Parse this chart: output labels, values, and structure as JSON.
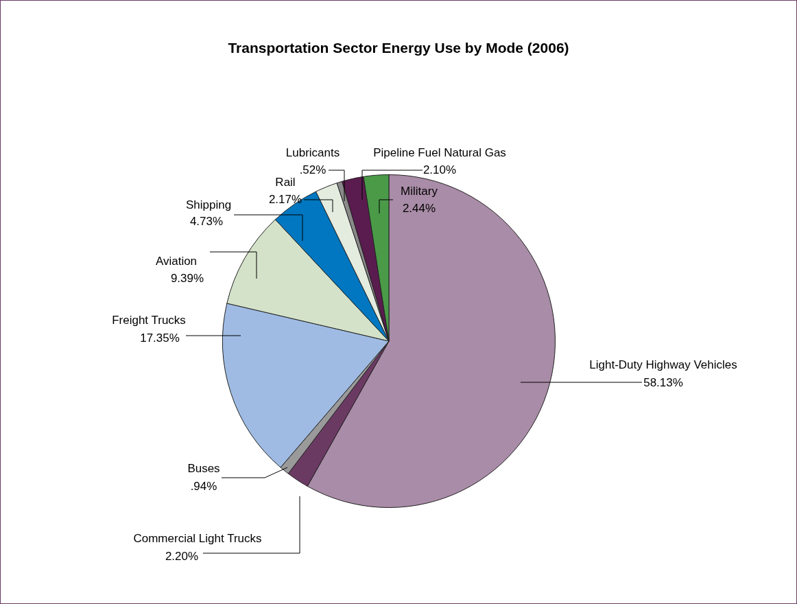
{
  "chart_data": {
    "type": "pie",
    "title": "Transportation Sector Energy Use by Mode (2006)",
    "categories": [
      "Light-Duty Highway Vehicles",
      "Commercial Light Trucks",
      "Buses",
      "Freight Trucks",
      "Aviation",
      "Shipping",
      "Rail",
      "Lubricants",
      "Pipeline Fuel Natural Gas",
      "Military"
    ],
    "values": [
      58.13,
      2.2,
      0.94,
      17.35,
      9.39,
      4.73,
      2.17,
      0.52,
      2.1,
      2.44
    ],
    "colors": [
      "#a98ca7",
      "#6b3a63",
      "#9a9a9a",
      "#9fbbe3",
      "#d4e2c9",
      "#0077c0",
      "#e4ece0",
      "#8a8a8a",
      "#5a1b4f",
      "#4a9a48"
    ],
    "value_labels": [
      "58.13%",
      "2.20%",
      ".94%",
      "17.35%",
      "9.39%",
      "4.73%",
      "2.17%",
      ".52%",
      "2.10%",
      "2.44%"
    ]
  }
}
